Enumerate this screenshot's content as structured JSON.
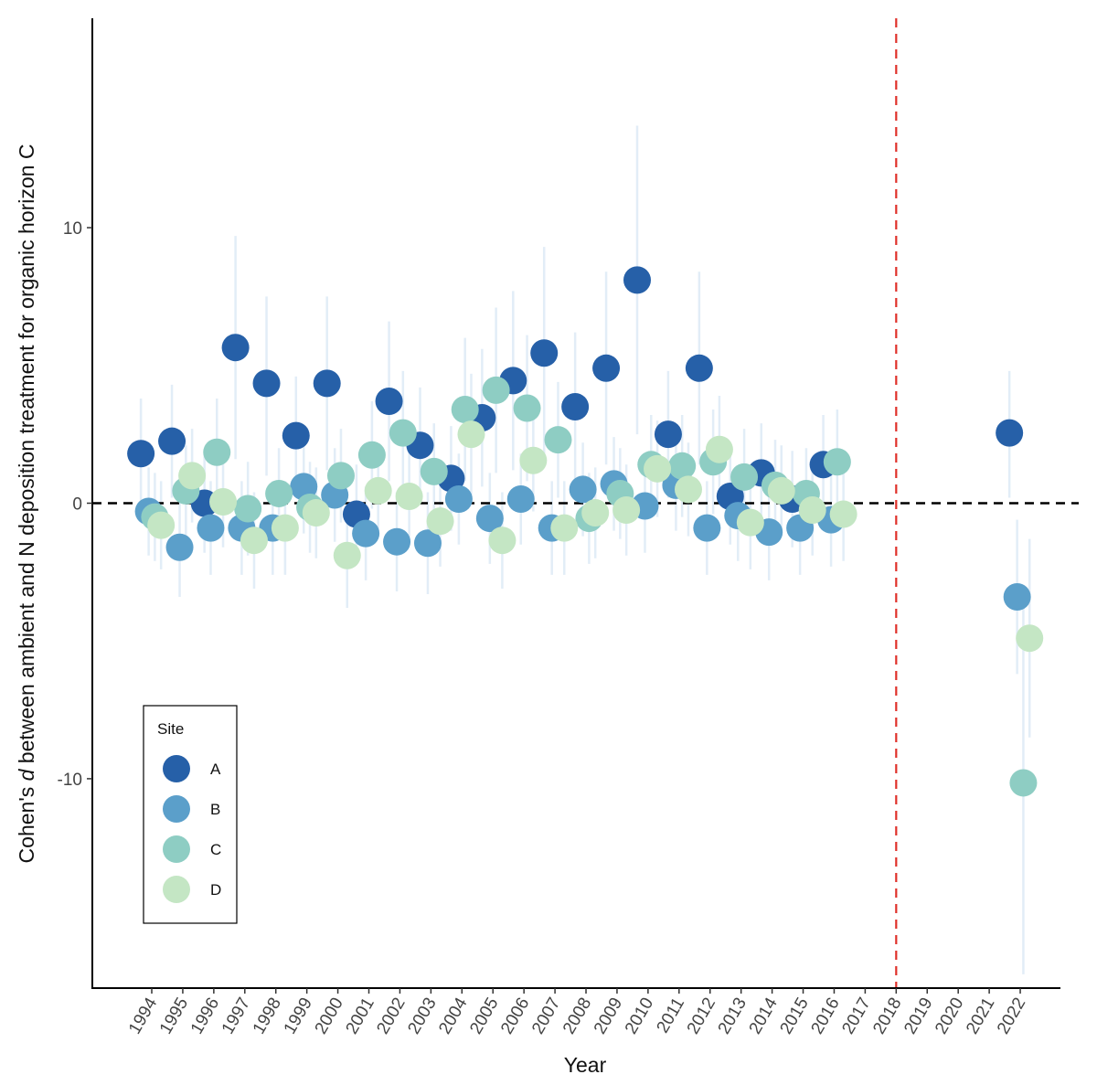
{
  "chart_data": {
    "type": "scatter",
    "title": "",
    "xlabel": "Year",
    "ylabel": {
      "prefix": "Cohen's ",
      "italic": "d",
      "suffix": " between ambient and N deposition treatment for organic horizon C"
    },
    "x_categories": [
      "1994",
      "1995",
      "1996",
      "1997",
      "1998",
      "1999",
      "2000",
      "2001",
      "2002",
      "2003",
      "2004",
      "2005",
      "2006",
      "2007",
      "2008",
      "2009",
      "2010",
      "2011",
      "2012",
      "2013",
      "2014",
      "2015",
      "2016",
      "2017",
      "2018",
      "2019",
      "2020",
      "2021",
      "2022"
    ],
    "ylim": [
      -17.6,
      17.6
    ],
    "y_ticks": [
      -10,
      0,
      10
    ],
    "y_tick_labels": [
      "-10",
      "0",
      "10"
    ],
    "reference_lines": [
      {
        "axis": "y",
        "value": 0,
        "style": "dashed",
        "color": "#000000"
      },
      {
        "axis": "x",
        "value": "2018",
        "style": "dashed",
        "color": "#e0302a"
      }
    ],
    "error_bar_color": "#c6dbef",
    "legend": {
      "title": "Site",
      "position": "bottom-left",
      "entries": [
        {
          "label": "A",
          "color": "#2660a8"
        },
        {
          "label": "B",
          "color": "#5b9fca"
        },
        {
          "label": "C",
          "color": "#8ecdc3"
        },
        {
          "label": "D",
          "color": "#c4e6c4"
        }
      ]
    },
    "series": [
      {
        "name": "A",
        "color": "#2660a8",
        "points": [
          {
            "x": 1993.65,
            "y": 1.8,
            "lo": -0.2,
            "hi": 3.8
          },
          {
            "x": 1994.65,
            "y": 2.25,
            "lo": 0.2,
            "hi": 4.3
          },
          {
            "x": 1995.7,
            "y": 0.0,
            "lo": -1.8,
            "hi": 1.8
          },
          {
            "x": 1996.7,
            "y": 5.65,
            "lo": 1.6,
            "hi": 9.7
          },
          {
            "x": 1997.7,
            "y": 4.35,
            "lo": 1.0,
            "hi": 7.5
          },
          {
            "x": 1998.65,
            "y": 2.45,
            "lo": 0.3,
            "hi": 4.6
          },
          {
            "x": 1999.65,
            "y": 4.35,
            "lo": 1.2,
            "hi": 7.5
          },
          {
            "x": 2000.6,
            "y": -0.4,
            "lo": -2.2,
            "hi": 1.4
          },
          {
            "x": 2001.65,
            "y": 3.7,
            "lo": 0.8,
            "hi": 6.6
          },
          {
            "x": 2002.65,
            "y": 2.1,
            "lo": 0.0,
            "hi": 4.2
          },
          {
            "x": 2003.65,
            "y": 0.9,
            "lo": -1.0,
            "hi": 2.8
          },
          {
            "x": 2004.65,
            "y": 3.1,
            "lo": 0.6,
            "hi": 5.6
          },
          {
            "x": 2005.65,
            "y": 4.45,
            "lo": 1.2,
            "hi": 7.7
          },
          {
            "x": 2006.65,
            "y": 5.45,
            "lo": 1.6,
            "hi": 9.3
          },
          {
            "x": 2007.65,
            "y": 3.5,
            "lo": 0.8,
            "hi": 6.2
          },
          {
            "x": 2008.65,
            "y": 4.9,
            "lo": 1.4,
            "hi": 8.4
          },
          {
            "x": 2009.65,
            "y": 8.1,
            "lo": 2.5,
            "hi": 13.7
          },
          {
            "x": 2010.65,
            "y": 2.5,
            "lo": 0.2,
            "hi": 4.8
          },
          {
            "x": 2011.65,
            "y": 4.9,
            "lo": 1.4,
            "hi": 8.4
          },
          {
            "x": 2012.65,
            "y": 0.25,
            "lo": -1.5,
            "hi": 2.0
          },
          {
            "x": 2013.65,
            "y": 1.1,
            "lo": -0.7,
            "hi": 2.9
          },
          {
            "x": 2014.65,
            "y": 0.15,
            "lo": -1.6,
            "hi": 1.9
          },
          {
            "x": 2015.65,
            "y": 1.4,
            "lo": -0.4,
            "hi": 3.2
          },
          {
            "x": 2021.65,
            "y": 2.55,
            "lo": 0.2,
            "hi": 4.8
          }
        ]
      },
      {
        "name": "B",
        "color": "#5b9fca",
        "points": [
          {
            "x": 1993.9,
            "y": -0.3,
            "lo": -1.9,
            "hi": 1.3
          },
          {
            "x": 1994.9,
            "y": -1.6,
            "lo": -3.4,
            "hi": 0.2
          },
          {
            "x": 1995.9,
            "y": -0.9,
            "lo": -2.6,
            "hi": 0.8
          },
          {
            "x": 1996.9,
            "y": -0.9,
            "lo": -2.6,
            "hi": 0.8
          },
          {
            "x": 1997.9,
            "y": -0.9,
            "lo": -2.6,
            "hi": 0.8
          },
          {
            "x": 1998.9,
            "y": 0.6,
            "lo": -1.1,
            "hi": 2.3
          },
          {
            "x": 1999.9,
            "y": 0.3,
            "lo": -1.4,
            "hi": 2.0
          },
          {
            "x": 2000.9,
            "y": -1.1,
            "lo": -2.8,
            "hi": 0.6
          },
          {
            "x": 2001.9,
            "y": -1.4,
            "lo": -3.2,
            "hi": 0.4
          },
          {
            "x": 2002.9,
            "y": -1.45,
            "lo": -3.3,
            "hi": 0.4
          },
          {
            "x": 2003.9,
            "y": 0.15,
            "lo": -1.5,
            "hi": 1.8
          },
          {
            "x": 2004.9,
            "y": -0.55,
            "lo": -2.2,
            "hi": 1.1
          },
          {
            "x": 2005.9,
            "y": 0.15,
            "lo": -1.5,
            "hi": 1.8
          },
          {
            "x": 2006.9,
            "y": -0.9,
            "lo": -2.6,
            "hi": 0.8
          },
          {
            "x": 2007.9,
            "y": 0.5,
            "lo": -1.2,
            "hi": 2.2
          },
          {
            "x": 2008.9,
            "y": 0.7,
            "lo": -1.0,
            "hi": 2.4
          },
          {
            "x": 2009.9,
            "y": -0.1,
            "lo": -1.8,
            "hi": 1.6
          },
          {
            "x": 2010.9,
            "y": 0.65,
            "lo": -1.0,
            "hi": 2.3
          },
          {
            "x": 2011.9,
            "y": -0.9,
            "lo": -2.6,
            "hi": 0.8
          },
          {
            "x": 2012.9,
            "y": -0.45,
            "lo": -2.1,
            "hi": 1.2
          },
          {
            "x": 2013.9,
            "y": -1.05,
            "lo": -2.8,
            "hi": 0.7
          },
          {
            "x": 2014.9,
            "y": -0.9,
            "lo": -2.6,
            "hi": 0.8
          },
          {
            "x": 2015.9,
            "y": -0.6,
            "lo": -2.3,
            "hi": 1.1
          },
          {
            "x": 2021.9,
            "y": -3.4,
            "lo": -6.2,
            "hi": -0.6
          }
        ]
      },
      {
        "name": "C",
        "color": "#8ecdc3",
        "points": [
          {
            "x": 1994.1,
            "y": -0.5,
            "lo": -2.1,
            "hi": 1.1
          },
          {
            "x": 1995.1,
            "y": 0.45,
            "lo": -1.2,
            "hi": 2.1
          },
          {
            "x": 1996.1,
            "y": 1.85,
            "lo": -0.1,
            "hi": 3.8
          },
          {
            "x": 1997.1,
            "y": -0.2,
            "lo": -1.9,
            "hi": 1.5
          },
          {
            "x": 1998.1,
            "y": 0.35,
            "lo": -1.3,
            "hi": 2.0
          },
          {
            "x": 1999.1,
            "y": -0.15,
            "lo": -1.8,
            "hi": 1.5
          },
          {
            "x": 2000.1,
            "y": 1.0,
            "lo": -0.7,
            "hi": 2.7
          },
          {
            "x": 2001.1,
            "y": 1.75,
            "lo": -0.2,
            "hi": 3.7
          },
          {
            "x": 2002.1,
            "y": 2.55,
            "lo": 0.3,
            "hi": 4.8
          },
          {
            "x": 2003.1,
            "y": 1.15,
            "lo": -0.6,
            "hi": 2.9
          },
          {
            "x": 2004.1,
            "y": 3.4,
            "lo": 0.8,
            "hi": 6.0
          },
          {
            "x": 2005.1,
            "y": 4.1,
            "lo": 1.1,
            "hi": 7.1
          },
          {
            "x": 2006.1,
            "y": 3.45,
            "lo": 0.8,
            "hi": 6.1
          },
          {
            "x": 2007.1,
            "y": 2.3,
            "lo": 0.2,
            "hi": 4.4
          },
          {
            "x": 2008.1,
            "y": -0.55,
            "lo": -2.2,
            "hi": 1.1
          },
          {
            "x": 2009.1,
            "y": 0.35,
            "lo": -1.3,
            "hi": 2.0
          },
          {
            "x": 2010.1,
            "y": 1.4,
            "lo": -0.4,
            "hi": 3.2
          },
          {
            "x": 2011.1,
            "y": 1.35,
            "lo": -0.5,
            "hi": 3.2
          },
          {
            "x": 2012.1,
            "y": 1.5,
            "lo": -0.4,
            "hi": 3.4
          },
          {
            "x": 2013.1,
            "y": 0.95,
            "lo": -0.8,
            "hi": 2.7
          },
          {
            "x": 2014.1,
            "y": 0.65,
            "lo": -1.0,
            "hi": 2.3
          },
          {
            "x": 2015.1,
            "y": 0.35,
            "lo": -1.3,
            "hi": 2.0
          },
          {
            "x": 2016.1,
            "y": 1.5,
            "lo": -0.4,
            "hi": 3.4
          },
          {
            "x": 2022.1,
            "y": -10.15,
            "lo": -17.1,
            "hi": -3.2
          }
        ]
      },
      {
        "name": "D",
        "color": "#c4e6c4",
        "points": [
          {
            "x": 1994.3,
            "y": -0.8,
            "lo": -2.4,
            "hi": 0.8
          },
          {
            "x": 1995.3,
            "y": 1.0,
            "lo": -0.7,
            "hi": 2.7
          },
          {
            "x": 1996.3,
            "y": 0.05,
            "lo": -1.6,
            "hi": 1.7
          },
          {
            "x": 1997.3,
            "y": -1.35,
            "lo": -3.1,
            "hi": 0.4
          },
          {
            "x": 1998.3,
            "y": -0.9,
            "lo": -2.6,
            "hi": 0.8
          },
          {
            "x": 1999.3,
            "y": -0.35,
            "lo": -2.0,
            "hi": 1.3
          },
          {
            "x": 2000.3,
            "y": -1.9,
            "lo": -3.8,
            "hi": 0.0
          },
          {
            "x": 2001.3,
            "y": 0.45,
            "lo": -1.2,
            "hi": 2.1
          },
          {
            "x": 2002.3,
            "y": 0.25,
            "lo": -1.4,
            "hi": 1.9
          },
          {
            "x": 2003.3,
            "y": -0.65,
            "lo": -2.3,
            "hi": 1.0
          },
          {
            "x": 2004.3,
            "y": 2.5,
            "lo": 0.3,
            "hi": 4.7
          },
          {
            "x": 2005.3,
            "y": -1.35,
            "lo": -3.1,
            "hi": 0.4
          },
          {
            "x": 2006.3,
            "y": 1.55,
            "lo": -0.3,
            "hi": 3.4
          },
          {
            "x": 2007.3,
            "y": -0.9,
            "lo": -2.6,
            "hi": 0.8
          },
          {
            "x": 2008.3,
            "y": -0.35,
            "lo": -2.0,
            "hi": 1.3
          },
          {
            "x": 2009.3,
            "y": -0.25,
            "lo": -1.9,
            "hi": 1.4
          },
          {
            "x": 2010.3,
            "y": 1.25,
            "lo": -0.5,
            "hi": 3.0
          },
          {
            "x": 2011.3,
            "y": 0.5,
            "lo": -1.2,
            "hi": 2.2
          },
          {
            "x": 2012.3,
            "y": 1.95,
            "lo": 0.0,
            "hi": 3.9
          },
          {
            "x": 2013.3,
            "y": -0.7,
            "lo": -2.4,
            "hi": 1.0
          },
          {
            "x": 2014.3,
            "y": 0.45,
            "lo": -1.2,
            "hi": 2.1
          },
          {
            "x": 2015.3,
            "y": -0.25,
            "lo": -1.9,
            "hi": 1.4
          },
          {
            "x": 2016.3,
            "y": -0.4,
            "lo": -2.1,
            "hi": 1.3
          },
          {
            "x": 2022.3,
            "y": -4.9,
            "lo": -8.5,
            "hi": -1.3
          }
        ]
      }
    ]
  }
}
